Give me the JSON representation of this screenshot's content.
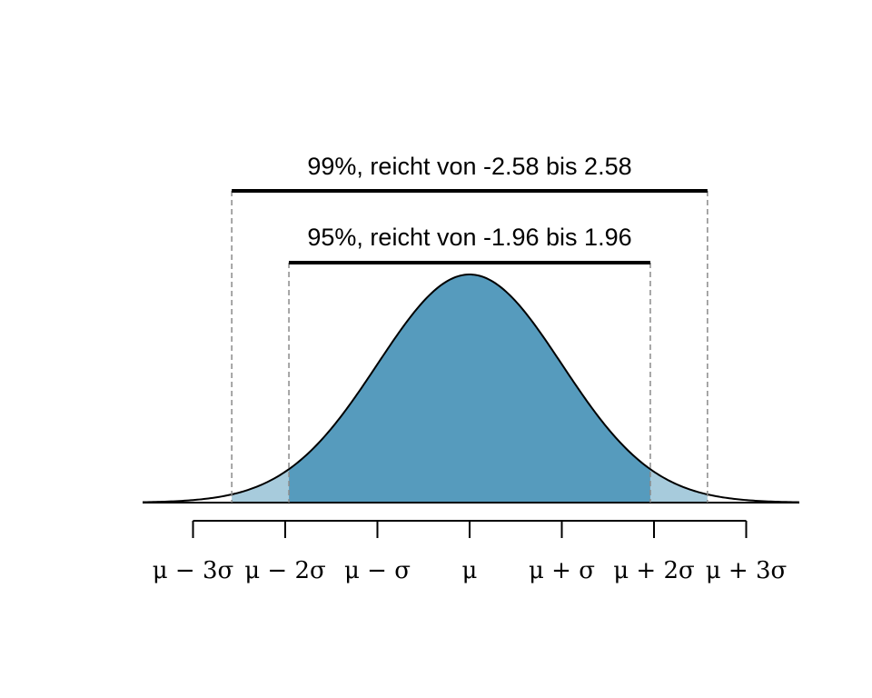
{
  "chart_data": {
    "type": "area",
    "title": "",
    "distribution": "normal",
    "mean": 0,
    "sd": 1,
    "x_range": [
      -3.6,
      3.6
    ],
    "tick_positions": [
      -3,
      -2,
      -1,
      0,
      1,
      2,
      3
    ],
    "tick_labels": [
      "μ − 3σ",
      "μ − 2σ",
      "μ − σ",
      "μ",
      "μ + σ",
      "μ + 2σ",
      "μ + 3σ"
    ],
    "intervals": [
      {
        "name": "99",
        "level": 0.99,
        "from": -2.58,
        "to": 2.58,
        "label": "99%, reicht von -2.58 bis 2.58"
      },
      {
        "name": "95",
        "level": 0.95,
        "from": -1.96,
        "to": 1.96,
        "label": "95%, reicht von -1.96 bis 1.96"
      }
    ],
    "colors": {
      "inner_fill": "#569bbd",
      "outer_fill": "#a7cbdc",
      "curve": "#000000",
      "guide": "#8a8a8a"
    }
  }
}
